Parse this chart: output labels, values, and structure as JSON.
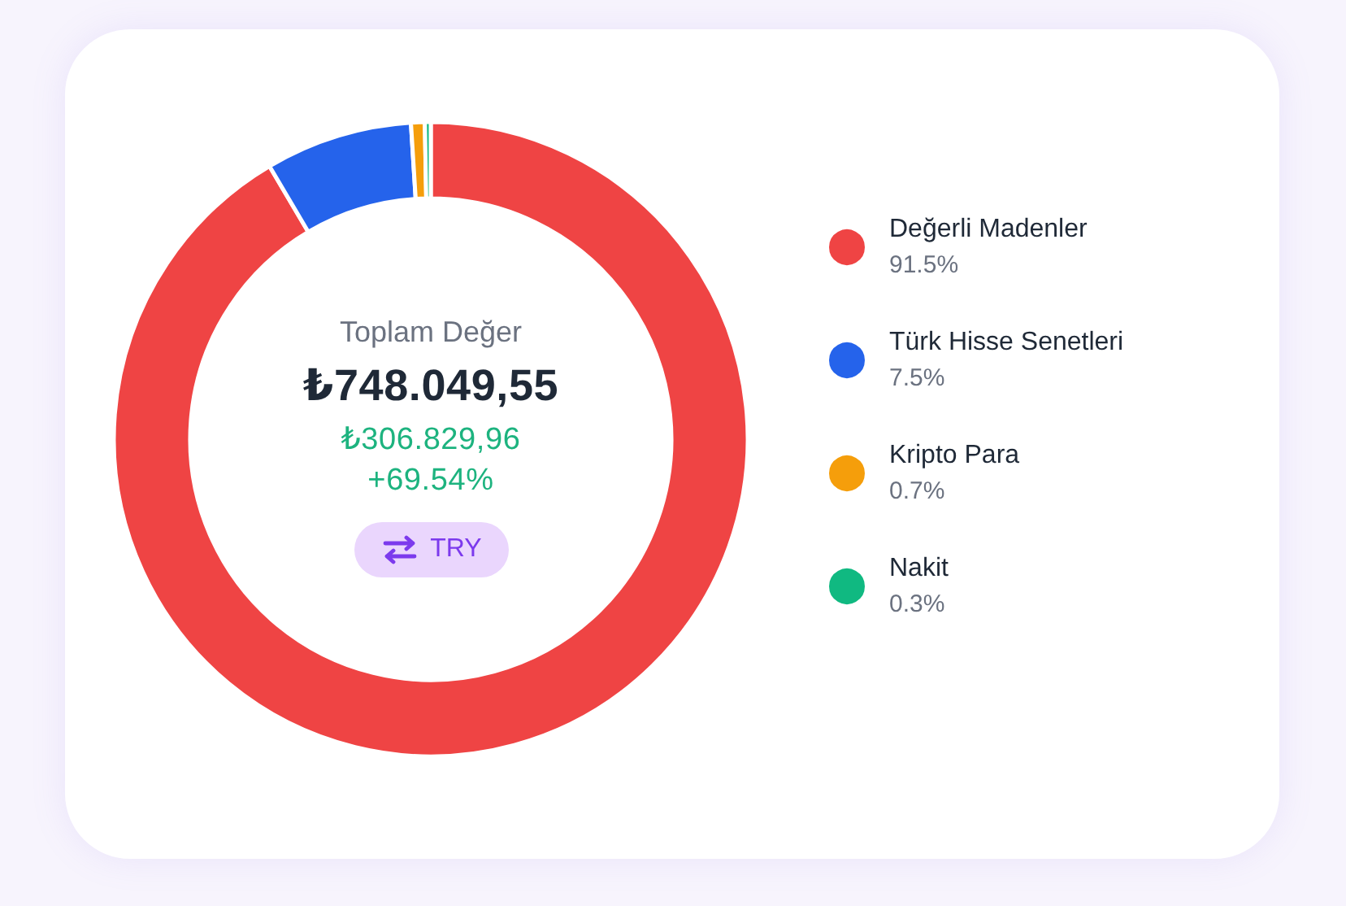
{
  "chart_data": {
    "type": "donut",
    "title": "Toplam Değer",
    "subtitle": "₺748.049,55",
    "annotations": [
      "₺306.829,96",
      "+69.54%",
      "TRY"
    ],
    "categories": [
      "Değerli Madenler",
      "Türk Hisse Senetleri",
      "Kripto Para",
      "Nakit"
    ],
    "values": [
      91.5,
      7.5,
      0.7,
      0.3
    ],
    "value_labels": [
      "91.5%",
      "7.5%",
      "0.7%",
      "0.3%"
    ],
    "colors": [
      "#ef4444",
      "#2563eb",
      "#f59e0b",
      "#10b981"
    ],
    "legend": "right"
  }
}
